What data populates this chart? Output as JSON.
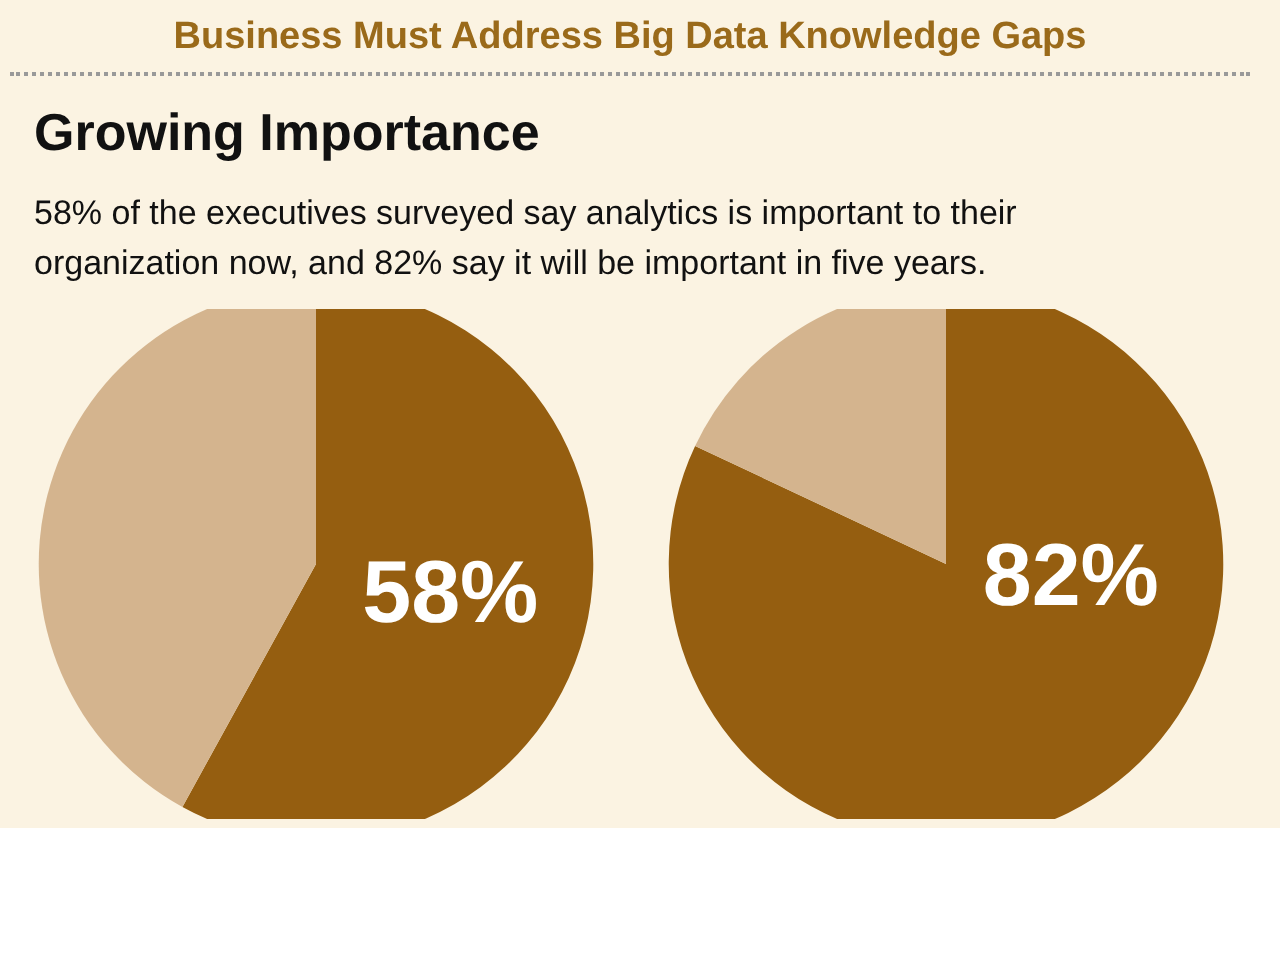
{
  "chart_data": [
    {
      "type": "pie",
      "title": "Business Must Address Big Data Knowledge Gaps",
      "subtitle": "Growing Importance",
      "annotations": [
        "58% of the executives surveyed say analytics is important to their organization now, and 82% say it will be important in five years."
      ],
      "categories": [
        null,
        null
      ],
      "values": [
        58,
        42
      ],
      "colors": [
        "#955e10",
        "#d4b48e"
      ],
      "value_labels": [
        "58%",
        null
      ]
    },
    {
      "type": "pie",
      "categories": [
        null,
        null
      ],
      "values": [
        82,
        18
      ],
      "colors": [
        "#955e10",
        "#d4b48e"
      ],
      "value_labels": [
        "82%",
        null
      ]
    }
  ]
}
